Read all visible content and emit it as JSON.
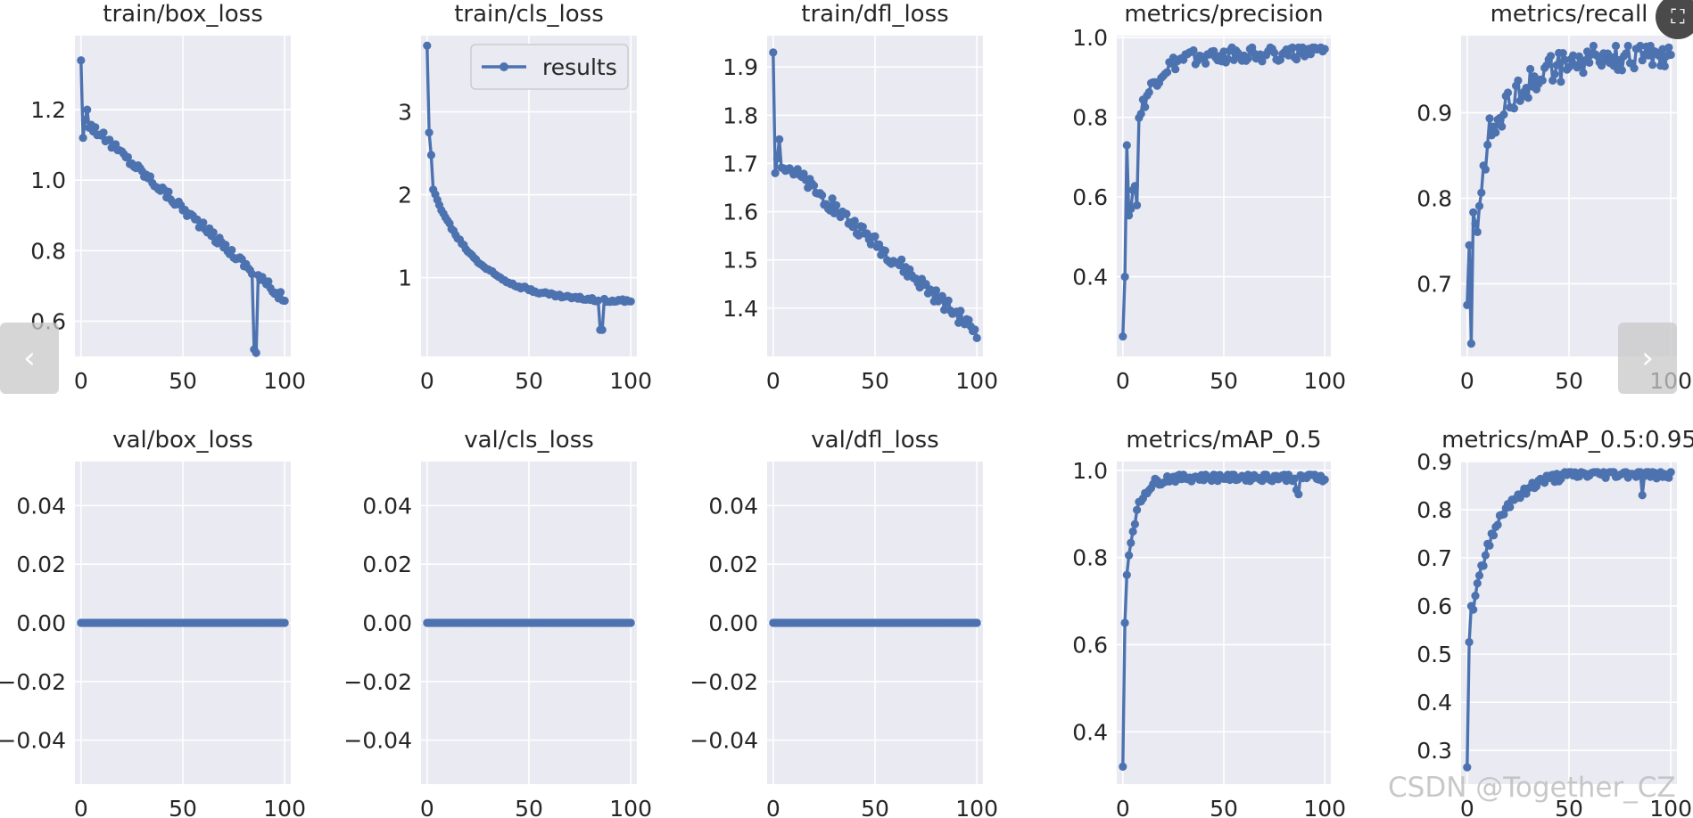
{
  "colors": {
    "plot_bg": "#eaeaf2",
    "grid": "#ffffff",
    "line": "#4c72b0",
    "text": "#262626"
  },
  "icons": {
    "prev": "chevron-left-icon",
    "next": "chevron-right-icon",
    "expand": "expand-icon"
  },
  "nav": {
    "prev_glyph": "‹",
    "next_glyph": "›",
    "expand_glyph": "⛶"
  },
  "watermark": "CSDN @Together_CZ",
  "chart_data": [
    {
      "type": "line",
      "title": "train/box_loss",
      "ylim": [
        0.5,
        1.41
      ],
      "yticks": [
        0.6,
        0.8,
        1.0,
        1.2
      ],
      "ytick_labels": [
        "0.6",
        "0.8",
        "1.0",
        "1.2"
      ],
      "xlim": [
        -3,
        103
      ],
      "xticks": [
        0,
        50,
        100
      ],
      "xtick_labels": [
        "0",
        "50",
        "100"
      ],
      "series": [
        {
          "name": "results",
          "kind": "train_box",
          "start": 1.34
        }
      ]
    },
    {
      "type": "line",
      "title": "train/cls_loss",
      "ylim": [
        0.05,
        3.92
      ],
      "yticks": [
        1,
        2,
        3
      ],
      "ytick_labels": [
        "1",
        "2",
        "3"
      ],
      "xlim": [
        -3,
        103
      ],
      "xticks": [
        0,
        50,
        100
      ],
      "xtick_labels": [
        "0",
        "50",
        "100"
      ],
      "legend": {
        "label": "results",
        "loc": "upper right"
      },
      "series": [
        {
          "name": "results",
          "kind": "train_cls",
          "start": 3.8
        }
      ]
    },
    {
      "type": "line",
      "title": "train/dfl_loss",
      "ylim": [
        1.3,
        1.965
      ],
      "yticks": [
        1.4,
        1.5,
        1.6,
        1.7,
        1.8,
        1.9
      ],
      "ytick_labels": [
        "1.4",
        "1.5",
        "1.6",
        "1.7",
        "1.8",
        "1.9"
      ],
      "xlim": [
        -3,
        103
      ],
      "xticks": [
        0,
        50,
        100
      ],
      "xtick_labels": [
        "0",
        "50",
        "100"
      ],
      "series": [
        {
          "name": "results",
          "kind": "train_dfl",
          "start": 1.93
        }
      ]
    },
    {
      "type": "line",
      "title": "metrics/precision",
      "ylim": [
        0.2,
        1.005
      ],
      "yticks": [
        0.4,
        0.6,
        0.8,
        1.0
      ],
      "ytick_labels": [
        "0.4",
        "0.6",
        "0.8",
        "1.0"
      ],
      "xlim": [
        -3,
        103
      ],
      "xticks": [
        0,
        50,
        100
      ],
      "xtick_labels": [
        "0",
        "50",
        "100"
      ],
      "series": [
        {
          "name": "results",
          "kind": "precision",
          "start": 0.25
        }
      ]
    },
    {
      "type": "line",
      "title": "metrics/recall",
      "ylim": [
        0.615,
        0.99
      ],
      "yticks": [
        0.7,
        0.8,
        0.9
      ],
      "ytick_labels": [
        "0.7",
        "0.8",
        "0.9"
      ],
      "xlim": [
        -3,
        103
      ],
      "xticks": [
        0,
        50,
        100
      ],
      "xtick_labels": [
        "0",
        "50",
        "100"
      ],
      "series": [
        {
          "name": "results",
          "kind": "recall",
          "start": 0.675
        }
      ]
    },
    {
      "type": "line",
      "title": "val/box_loss",
      "ylim": [
        -0.055,
        0.055
      ],
      "yticks": [
        -0.04,
        -0.02,
        0.0,
        0.02,
        0.04
      ],
      "ytick_labels": [
        "−0.04",
        "−0.02",
        "0.00",
        "0.02",
        "0.04"
      ],
      "xlim": [
        -3,
        103
      ],
      "xticks": [
        0,
        50,
        100
      ],
      "xtick_labels": [
        "0",
        "50",
        "100"
      ],
      "series": [
        {
          "name": "results",
          "kind": "zero",
          "value": 0.0
        }
      ]
    },
    {
      "type": "line",
      "title": "val/cls_loss",
      "ylim": [
        -0.055,
        0.055
      ],
      "yticks": [
        -0.04,
        -0.02,
        0.0,
        0.02,
        0.04
      ],
      "ytick_labels": [
        "−0.04",
        "−0.02",
        "0.00",
        "0.02",
        "0.04"
      ],
      "xlim": [
        -3,
        103
      ],
      "xticks": [
        0,
        50,
        100
      ],
      "xtick_labels": [
        "0",
        "50",
        "100"
      ],
      "series": [
        {
          "name": "results",
          "kind": "zero",
          "value": 0.0
        }
      ]
    },
    {
      "type": "line",
      "title": "val/dfl_loss",
      "ylim": [
        -0.055,
        0.055
      ],
      "yticks": [
        -0.04,
        -0.02,
        0.0,
        0.02,
        0.04
      ],
      "ytick_labels": [
        "−0.04",
        "−0.02",
        "0.00",
        "0.02",
        "0.04"
      ],
      "xlim": [
        -3,
        103
      ],
      "xticks": [
        0,
        50,
        100
      ],
      "xtick_labels": [
        "0",
        "50",
        "100"
      ],
      "series": [
        {
          "name": "results",
          "kind": "zero",
          "value": 0.0
        }
      ]
    },
    {
      "type": "line",
      "title": "metrics/mAP_0.5",
      "ylim": [
        0.28,
        1.02
      ],
      "yticks": [
        0.4,
        0.6,
        0.8,
        1.0
      ],
      "ytick_labels": [
        "0.4",
        "0.6",
        "0.8",
        "1.0"
      ],
      "xlim": [
        -3,
        103
      ],
      "xticks": [
        0,
        50,
        100
      ],
      "xtick_labels": [
        "0",
        "50",
        "100"
      ],
      "series": [
        {
          "name": "results",
          "kind": "map50",
          "start": 0.32
        }
      ]
    },
    {
      "type": "line",
      "title": "metrics/mAP_0.5:0.95",
      "ylim": [
        0.23,
        0.9
      ],
      "yticks": [
        0.3,
        0.4,
        0.5,
        0.6,
        0.7,
        0.8,
        0.9
      ],
      "ytick_labels": [
        "0.3",
        "0.4",
        "0.5",
        "0.6",
        "0.7",
        "0.8",
        "0.9"
      ],
      "xlim": [
        -3,
        103
      ],
      "xticks": [
        0,
        50,
        100
      ],
      "xtick_labels": [
        "0",
        "50",
        "100"
      ],
      "series": [
        {
          "name": "results",
          "kind": "map5095",
          "start": 0.27
        }
      ]
    }
  ]
}
